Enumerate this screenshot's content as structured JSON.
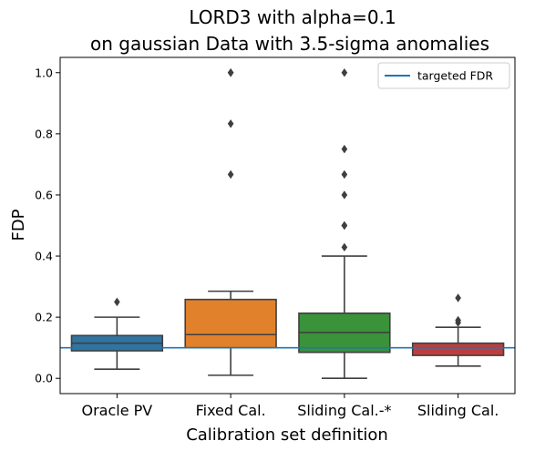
{
  "chart_data": {
    "type": "box",
    "title_lines": [
      "LORD3 with alpha=0.1",
      "on gaussian Data with 3.5-sigma anomalies"
    ],
    "xlabel": "Calibration set definition",
    "ylabel": "FDP",
    "ylim": [
      -0.05,
      1.05
    ],
    "yticks": [
      "0.0",
      "0.2",
      "0.4",
      "0.6",
      "0.8",
      "1.0"
    ],
    "grid": false,
    "legend": {
      "placement": "top-right",
      "entries": [
        {
          "label": "targeted FDR",
          "color": "#1f77b4"
        }
      ]
    },
    "reference_line": {
      "label": "targeted FDR",
      "y": 0.1,
      "color": "#1f77b4"
    },
    "categories": [
      "Oracle PV",
      "Fixed Cal.",
      "Sliding Cal.-*",
      "Sliding Cal."
    ],
    "boxes": [
      {
        "category": "Oracle PV",
        "color": "#3274a1",
        "whisker_low": 0.03,
        "q1": 0.09,
        "median": 0.115,
        "q3": 0.14,
        "whisker_high": 0.2,
        "outliers": [
          0.25
        ]
      },
      {
        "category": "Fixed Cal.",
        "color": "#e1812c",
        "whisker_low": 0.01,
        "q1": 0.1,
        "median": 0.143,
        "q3": 0.258,
        "whisker_high": 0.285,
        "outliers": [
          0.667,
          0.833,
          1.0,
          1.0
        ]
      },
      {
        "category": "Sliding Cal.-*",
        "color": "#3a923a",
        "whisker_low": 0.0,
        "q1": 0.085,
        "median": 0.15,
        "q3": 0.213,
        "whisker_high": 0.4,
        "outliers": [
          0.429,
          0.5,
          0.5,
          0.6,
          0.667,
          0.75,
          1.0
        ]
      },
      {
        "category": "Sliding Cal.",
        "color": "#c03d3e",
        "whisker_low": 0.04,
        "q1": 0.075,
        "median": 0.1,
        "q3": 0.115,
        "whisker_high": 0.167,
        "outliers": [
          0.182,
          0.19,
          0.263
        ]
      }
    ]
  }
}
